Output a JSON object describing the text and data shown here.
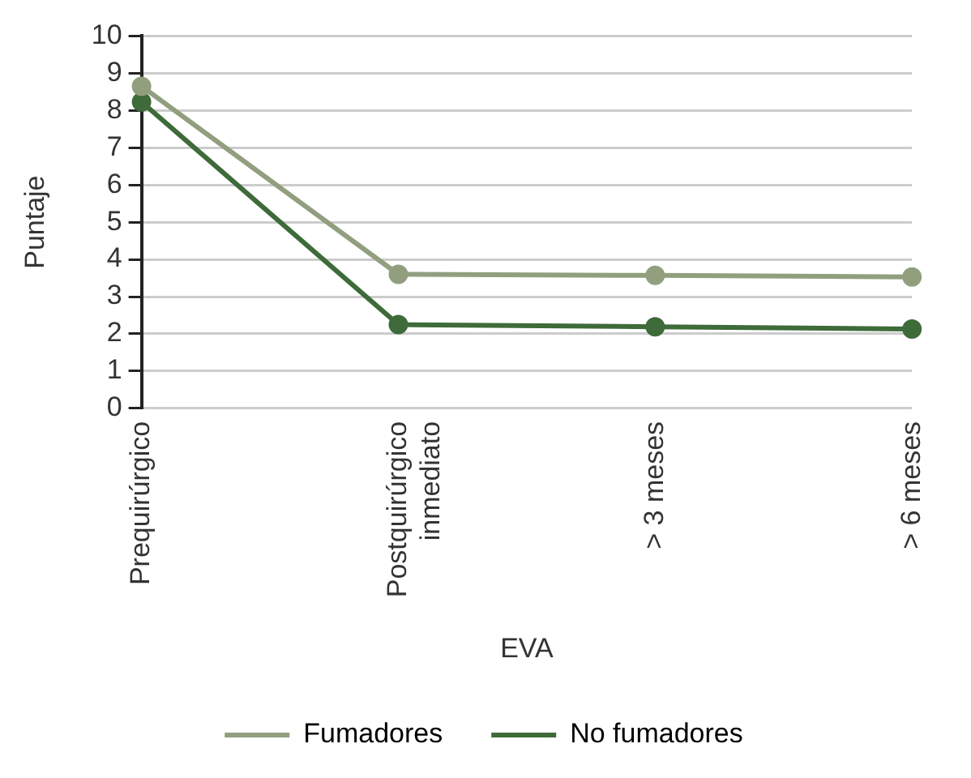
{
  "chart_data": {
    "type": "line",
    "xlabel": "EVA",
    "ylabel": "Puntaje",
    "categories": [
      "Prequirúrgico",
      "Postquirúrgico\ninmediato",
      "> 3 meses",
      "> 6 meses"
    ],
    "series": [
      {
        "name": "Fumadores",
        "color": "#919f7f",
        "values": [
          8.65,
          3.6,
          3.57,
          3.53
        ]
      },
      {
        "name": "No fumadores",
        "color": "#3e6b39",
        "values": [
          8.23,
          2.25,
          2.19,
          2.13
        ]
      }
    ],
    "ylim": [
      0,
      10
    ],
    "yticks": [
      0,
      1,
      2,
      3,
      4,
      5,
      6,
      7,
      8,
      9,
      10
    ],
    "grid": "y",
    "legend": "bottom",
    "marker": "circle",
    "line_style": "solid"
  }
}
